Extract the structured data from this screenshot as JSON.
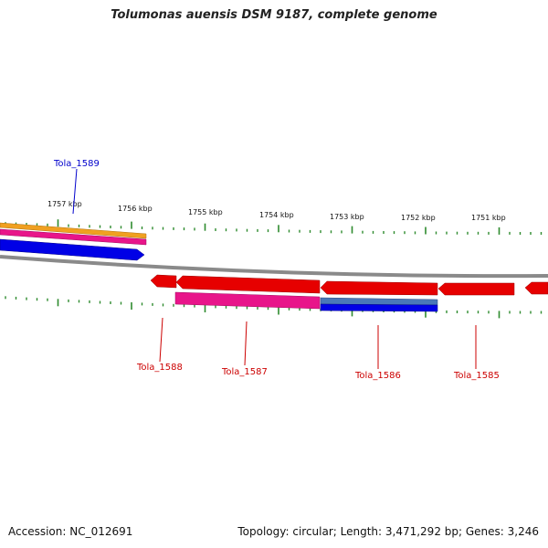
{
  "title": "Tolumonas auensis DSM 9187, complete genome",
  "footer": {
    "accession": "Accession: NC_012691",
    "summary": "Topology: circular; Length: 3,471,292 bp; Genes: 3,246"
  },
  "colors": {
    "backbone": "#8a8a8a",
    "tick": "#2e8b2e",
    "red_gene": "#e60000",
    "pink_gene": "#e8158a",
    "blue_gene": "#0000e6",
    "steel_gene": "#4a78b8",
    "orange_gene": "#f0a020",
    "label_red": "#cc0000",
    "label_blue": "#0000cc"
  },
  "scale": {
    "labels": [
      "1757 kbp",
      "1756 kbp",
      "1755 kbp",
      "1754 kbp",
      "1753 kbp",
      "1752 kbp",
      "1751 kbp"
    ]
  },
  "genes": [
    {
      "name": "Tola_1589",
      "color": "label_blue"
    },
    {
      "name": "Tola_1588",
      "color": "label_red"
    },
    {
      "name": "Tola_1587",
      "color": "label_red"
    },
    {
      "name": "Tola_1586",
      "color": "label_red"
    },
    {
      "name": "Tola_1585",
      "color": "label_red"
    }
  ]
}
